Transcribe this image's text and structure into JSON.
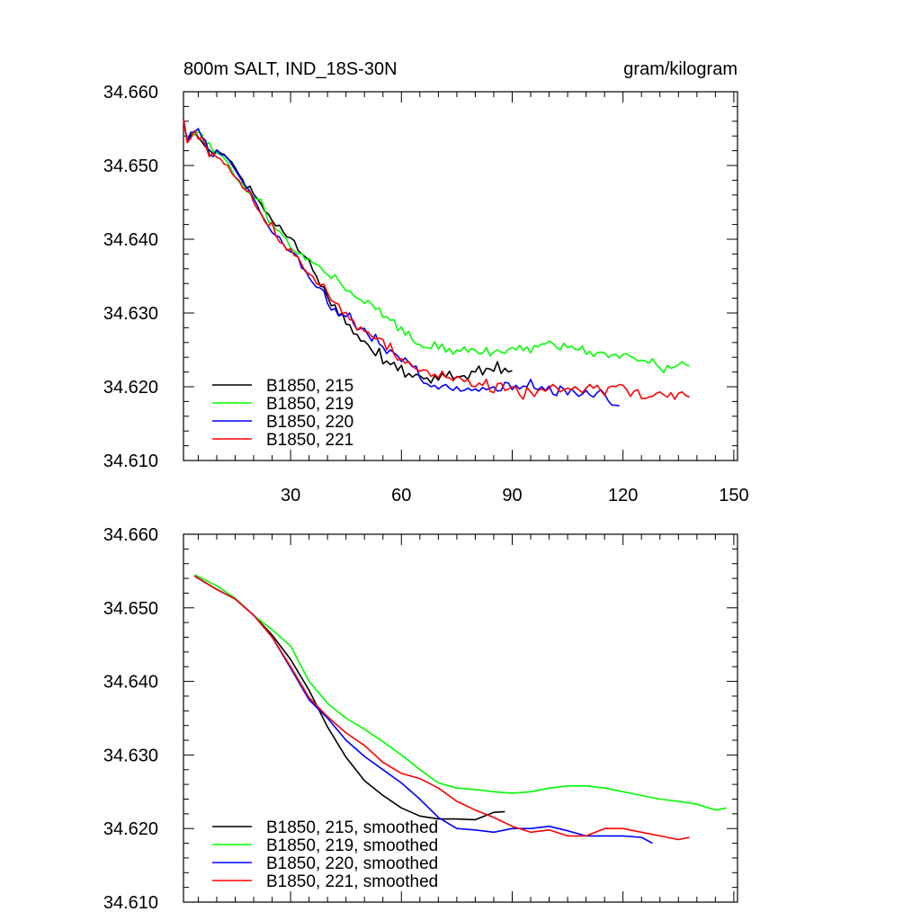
{
  "figure": {
    "title": "800m SALT, IND_18S-30N",
    "units": "gram/kilogram"
  },
  "chart_data": [
    {
      "type": "line",
      "title": "800m SALT, IND_18S-30N",
      "units": "gram/kilogram",
      "xlim": [
        1,
        151
      ],
      "ylim": [
        34.61,
        34.66
      ],
      "xticks": [
        30,
        60,
        90,
        120,
        150
      ],
      "xtick_labels": [
        "30",
        "60",
        "90",
        "120",
        "150"
      ],
      "yticks": [
        34.61,
        34.62,
        34.63,
        34.64,
        34.65,
        34.66
      ],
      "ytick_labels": [
        "34.610",
        "34.620",
        "34.630",
        "34.640",
        "34.650",
        "34.660"
      ],
      "legend_position": "bottom-left",
      "series": [
        {
          "name": "B1850, 215",
          "color": "#000000",
          "x0": 1,
          "values": [
            34.6563,
            34.6533,
            34.6541,
            34.6547,
            34.6538,
            34.6532,
            34.6525,
            34.6521,
            34.6516,
            34.6521,
            34.6517,
            34.6515,
            34.6509,
            34.6505,
            34.6497,
            34.6488,
            34.6481,
            34.6469,
            34.6472,
            34.6461,
            34.6455,
            34.6448,
            34.6438,
            34.6434,
            34.6425,
            34.6418,
            34.6419,
            34.641,
            34.6403,
            34.6402,
            34.6398,
            34.6385,
            34.638,
            34.6376,
            34.6372,
            34.6358,
            34.635,
            34.6337,
            34.6335,
            34.6322,
            34.631,
            34.6311,
            34.6297,
            34.63,
            34.6285,
            34.6284,
            34.6272,
            34.6271,
            34.6262,
            34.6262,
            34.6257,
            34.6249,
            34.6242,
            34.6252,
            34.6231,
            34.6235,
            34.623,
            34.6233,
            34.6222,
            34.6229,
            34.6213,
            34.6218,
            34.6213,
            34.6217,
            34.6215,
            34.6211,
            34.6212,
            34.6205,
            34.6215,
            34.6209,
            34.6218,
            34.6213,
            34.6221,
            34.6211,
            34.6213,
            34.6214,
            34.6215,
            34.621,
            34.6221,
            34.622,
            34.6228,
            34.6216,
            34.6225,
            34.6224,
            34.6221,
            34.6234,
            34.6218,
            34.6225,
            34.622,
            34.6222
          ]
        },
        {
          "name": "B1850, 219",
          "color": "#00ff00",
          "x0": 1,
          "values": [
            34.6563,
            34.6533,
            34.6545,
            34.6541,
            34.6546,
            34.6542,
            34.6528,
            34.6531,
            34.6519,
            34.6517,
            34.6515,
            34.651,
            34.6504,
            34.6494,
            34.6484,
            34.6478,
            34.6476,
            34.6465,
            34.6462,
            34.6457,
            34.6454,
            34.6454,
            34.644,
            34.6423,
            34.6421,
            34.6413,
            34.6411,
            34.6405,
            34.6399,
            34.6388,
            34.6384,
            34.638,
            34.6381,
            34.6372,
            34.6374,
            34.6368,
            34.6366,
            34.6363,
            34.6356,
            34.6352,
            34.6347,
            34.6352,
            34.6344,
            34.6337,
            34.633,
            34.633,
            34.6324,
            34.632,
            34.6318,
            34.6313,
            34.6317,
            34.6312,
            34.6305,
            34.6307,
            34.6294,
            34.6295,
            34.629,
            34.6291,
            34.6276,
            34.6281,
            34.627,
            34.6275,
            34.6263,
            34.6258,
            34.6257,
            34.6253,
            34.6253,
            34.6252,
            34.6261,
            34.6251,
            34.6258,
            34.6247,
            34.6252,
            34.6244,
            34.625,
            34.6248,
            34.6254,
            34.6247,
            34.6252,
            34.6249,
            34.6245,
            34.6245,
            34.6253,
            34.6242,
            34.6247,
            34.625,
            34.6247,
            34.6245,
            34.6251,
            34.6253,
            34.625,
            34.6256,
            34.6249,
            34.6254,
            34.6246,
            34.6256,
            34.6254,
            34.6258,
            34.6258,
            34.6262,
            34.6259,
            34.6253,
            34.625,
            34.6259,
            34.6253,
            34.6255,
            34.6251,
            34.625,
            34.6255,
            34.6244,
            34.6248,
            34.6241,
            34.6246,
            34.6247,
            34.6246,
            34.624,
            34.6243,
            34.6244,
            34.6239,
            34.6244,
            34.6245,
            34.6241,
            34.6239,
            34.6235,
            34.6236,
            34.6235,
            34.6232,
            34.6238,
            34.623,
            34.6225,
            34.6219,
            34.6229,
            34.6225,
            34.6227,
            34.623,
            34.6234,
            34.623,
            34.6228
          ]
        },
        {
          "name": "B1850, 220",
          "color": "#0000ff",
          "x0": 1,
          "values": [
            34.6563,
            34.6533,
            34.6545,
            34.6545,
            34.655,
            34.6538,
            34.6534,
            34.6515,
            34.6512,
            34.6521,
            34.6515,
            34.6514,
            34.651,
            34.6502,
            34.6494,
            34.6486,
            34.6478,
            34.6471,
            34.6465,
            34.6455,
            34.6446,
            34.6434,
            34.6426,
            34.6417,
            34.6409,
            34.6405,
            34.6403,
            34.6393,
            34.6386,
            34.6383,
            34.6381,
            34.6376,
            34.6361,
            34.6358,
            34.6348,
            34.6341,
            34.6335,
            34.6334,
            34.633,
            34.6313,
            34.6304,
            34.6306,
            34.6296,
            34.6298,
            34.6295,
            34.63,
            34.6286,
            34.6277,
            34.6279,
            34.6279,
            34.627,
            34.6262,
            34.6271,
            34.6258,
            34.6254,
            34.6245,
            34.625,
            34.6246,
            34.6242,
            34.6234,
            34.6239,
            34.6233,
            34.6227,
            34.6228,
            34.6212,
            34.6205,
            34.6204,
            34.62,
            34.6202,
            34.6197,
            34.6201,
            34.6203,
            34.6198,
            34.6195,
            34.62,
            34.6194,
            34.6195,
            34.6198,
            34.6195,
            34.6197,
            34.6194,
            34.6199,
            34.6196,
            34.6198,
            34.62,
            34.6194,
            34.6195,
            34.6206,
            34.6205,
            34.6196,
            34.6202,
            34.6197,
            34.6201,
            34.62,
            34.621,
            34.6198,
            34.6196,
            34.62,
            34.6195,
            34.6201,
            34.619,
            34.6188,
            34.6201,
            34.6197,
            34.6189,
            34.6197,
            34.6192,
            34.6187,
            34.619,
            34.6195,
            34.6189,
            34.6186,
            34.6192,
            34.6196,
            34.619,
            34.6181,
            34.6175,
            34.6175,
            34.6174
          ]
        },
        {
          "name": "B1850, 221",
          "color": "#ff0000",
          "x0": 1,
          "values": [
            34.6563,
            34.6531,
            34.6537,
            34.6547,
            34.6536,
            34.6538,
            34.6527,
            34.6512,
            34.6517,
            34.6511,
            34.6509,
            34.6502,
            34.65,
            34.649,
            34.6484,
            34.648,
            34.647,
            34.6466,
            34.6464,
            34.645,
            34.6441,
            34.6435,
            34.6424,
            34.6418,
            34.6423,
            34.6405,
            34.6396,
            34.6394,
            34.6385,
            34.6387,
            34.6378,
            34.6376,
            34.6366,
            34.6356,
            34.6353,
            34.635,
            34.634,
            34.6338,
            34.6339,
            34.6327,
            34.6317,
            34.6314,
            34.6312,
            34.6299,
            34.6301,
            34.6291,
            34.629,
            34.6277,
            34.6281,
            34.6275,
            34.6274,
            34.6268,
            34.6265,
            34.6266,
            34.6264,
            34.625,
            34.6259,
            34.6244,
            34.6236,
            34.6238,
            34.6232,
            34.6234,
            34.6228,
            34.6224,
            34.6221,
            34.6223,
            34.6222,
            34.6214,
            34.6217,
            34.6212,
            34.6221,
            34.6213,
            34.6212,
            34.6208,
            34.6214,
            34.6212,
            34.6207,
            34.621,
            34.6201,
            34.62,
            34.6205,
            34.6202,
            34.621,
            34.6194,
            34.6192,
            34.6204,
            34.6205,
            34.6195,
            34.6197,
            34.62,
            34.6199,
            34.6189,
            34.6183,
            34.6199,
            34.6193,
            34.6187,
            34.6195,
            34.6197,
            34.6194,
            34.6198,
            34.6203,
            34.6199,
            34.6193,
            34.6196,
            34.6198,
            34.6196,
            34.62,
            34.6196,
            34.6192,
            34.6198,
            34.6203,
            34.6198,
            34.6202,
            34.6195,
            34.6188,
            34.6199,
            34.6201,
            34.62,
            34.6203,
            34.6202,
            34.6196,
            34.6187,
            34.6194,
            34.6196,
            34.6184,
            34.6184,
            34.6186,
            34.6187,
            34.6191,
            34.6193,
            34.6189,
            34.6186,
            34.6192,
            34.6183,
            34.6191,
            34.6193,
            34.6188,
            34.6186
          ]
        }
      ]
    },
    {
      "type": "line",
      "xlim": [
        1,
        151
      ],
      "ylim": [
        34.61,
        34.66
      ],
      "xticks": [
        30,
        60,
        90,
        120,
        150
      ],
      "yticks": [
        34.61,
        34.62,
        34.63,
        34.64,
        34.65,
        34.66
      ],
      "ytick_labels": [
        "34.610",
        "34.620",
        "34.630",
        "34.640",
        "34.650",
        "34.660"
      ],
      "legend_position": "bottom-left",
      "series": [
        {
          "name": "B1850, 215, smoothed",
          "color": "#000000",
          "x": [
            4,
            10,
            15,
            20,
            25,
            30,
            35,
            40,
            45,
            50,
            55,
            60,
            65,
            70,
            75,
            80,
            85,
            88
          ],
          "values": [
            34.6543,
            34.6525,
            34.6512,
            34.649,
            34.6463,
            34.643,
            34.6388,
            34.6338,
            34.6297,
            34.6265,
            34.6245,
            34.6228,
            34.6217,
            34.6213,
            34.6213,
            34.6212,
            34.6222,
            34.6223
          ]
        },
        {
          "name": "B1850, 219, smoothed",
          "color": "#00ff00",
          "x": [
            4,
            10,
            15,
            20,
            25,
            30,
            35,
            40,
            45,
            50,
            55,
            60,
            65,
            70,
            75,
            80,
            85,
            90,
            95,
            100,
            105,
            110,
            115,
            120,
            125,
            130,
            135,
            140,
            145,
            148
          ],
          "values": [
            34.6545,
            34.653,
            34.6513,
            34.649,
            34.647,
            34.6448,
            34.64,
            34.637,
            34.635,
            34.6335,
            34.6318,
            34.63,
            34.628,
            34.6262,
            34.6255,
            34.6253,
            34.625,
            34.6248,
            34.625,
            34.6255,
            34.6258,
            34.6258,
            34.6255,
            34.625,
            34.6245,
            34.624,
            34.6237,
            34.6233,
            34.6225,
            34.6228
          ]
        },
        {
          "name": "B1850, 220, smoothed",
          "color": "#0000ff",
          "x": [
            4,
            10,
            15,
            20,
            25,
            30,
            35,
            40,
            45,
            50,
            55,
            60,
            65,
            70,
            75,
            80,
            85,
            90,
            95,
            100,
            105,
            110,
            115,
            120,
            125,
            128
          ],
          "values": [
            34.6543,
            34.6525,
            34.6512,
            34.649,
            34.646,
            34.6418,
            34.6375,
            34.635,
            34.632,
            34.6298,
            34.628,
            34.6262,
            34.624,
            34.6215,
            34.62,
            34.6198,
            34.6195,
            34.62,
            34.62,
            34.6203,
            34.6197,
            34.619,
            34.619,
            34.619,
            34.6188,
            34.618
          ]
        },
        {
          "name": "B1850, 221, smoothed",
          "color": "#ff0000",
          "x": [
            4,
            10,
            15,
            20,
            25,
            30,
            35,
            40,
            45,
            50,
            55,
            60,
            65,
            70,
            75,
            80,
            85,
            90,
            95,
            100,
            105,
            110,
            115,
            120,
            125,
            130,
            135,
            138
          ],
          "values": [
            34.6543,
            34.6525,
            34.6512,
            34.649,
            34.646,
            34.642,
            34.6378,
            34.6352,
            34.633,
            34.6313,
            34.629,
            34.6275,
            34.6268,
            34.6255,
            34.6237,
            34.6225,
            34.6215,
            34.6203,
            34.6195,
            34.6198,
            34.619,
            34.619,
            34.62,
            34.62,
            34.6195,
            34.619,
            34.6185,
            34.6188
          ]
        }
      ]
    }
  ]
}
